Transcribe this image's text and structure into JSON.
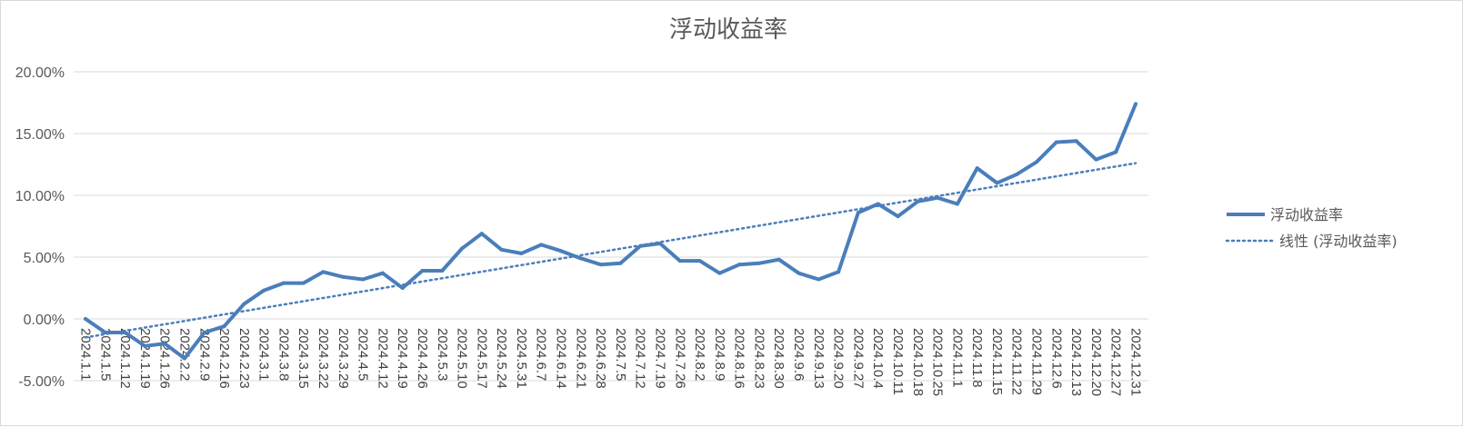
{
  "chart_data": {
    "type": "line",
    "title": "浮动收益率",
    "xlabel": "",
    "ylabel": "",
    "ylim": [
      -5,
      20
    ],
    "y_ticks": [
      "-5.00%",
      "0.00%",
      "5.00%",
      "10.00%",
      "15.00%",
      "20.00%"
    ],
    "y_tick_values": [
      -5,
      0,
      5,
      10,
      15,
      20
    ],
    "grid": true,
    "legend_position": "right",
    "colors": {
      "series": "#4a7ebb",
      "grid": "#d9d9d9",
      "text": "#595959"
    },
    "categories": [
      "2024.1.1",
      "2024.1.5",
      "2024.1.12",
      "2024.1.19",
      "2024.1.26",
      "2024.2.2",
      "2024.2.9",
      "2024.2.16",
      "2024.2.23",
      "2024.3.1",
      "2024.3.8",
      "2024.3.15",
      "2024.3.22",
      "2024.3.29",
      "2024.4.5",
      "2024.4.12",
      "2024.4.19",
      "2024.4.26",
      "2024.5.3",
      "2024.5.10",
      "2024.5.17",
      "2024.5.24",
      "2024.5.31",
      "2024.6.7",
      "2024.6.14",
      "2024.6.21",
      "2024.6.28",
      "2024.7.5",
      "2024.7.12",
      "2024.7.19",
      "2024.7.26",
      "2024.8.2",
      "2024.8.9",
      "2024.8.16",
      "2024.8.23",
      "2024.8.30",
      "2024.9.6",
      "2024.9.13",
      "2024.9.20",
      "2024.9.27",
      "2024.10.4",
      "2024.10.11",
      "2024.10.18",
      "2024.10.25",
      "2024.11.1",
      "2024.11.8",
      "2024.11.15",
      "2024.11.22",
      "2024.11.29",
      "2024.12.6",
      "2024.12.13",
      "2024.12.20",
      "2024.12.27",
      "2024.12.31"
    ],
    "series": [
      {
        "name": "浮动收益率",
        "style": "solid",
        "values": [
          0.0,
          -1.1,
          -1.1,
          -2.2,
          -2.0,
          -3.2,
          -1.1,
          -0.6,
          1.2,
          2.3,
          2.9,
          2.9,
          3.8,
          3.4,
          3.2,
          3.7,
          2.5,
          3.9,
          3.9,
          5.7,
          6.9,
          5.6,
          5.3,
          6.0,
          5.5,
          4.9,
          4.4,
          4.5,
          5.9,
          6.1,
          4.7,
          4.7,
          3.7,
          4.4,
          4.5,
          4.8,
          3.7,
          3.2,
          3.8,
          8.6,
          9.3,
          8.3,
          9.5,
          9.8,
          9.3,
          12.2,
          11.0,
          11.7,
          12.7,
          14.3,
          14.4,
          12.9,
          13.5,
          17.4
        ]
      },
      {
        "name": "线性 (浮动收益率)",
        "style": "dotted",
        "trendline": {
          "start": -1.5,
          "end": 12.6
        }
      }
    ]
  }
}
